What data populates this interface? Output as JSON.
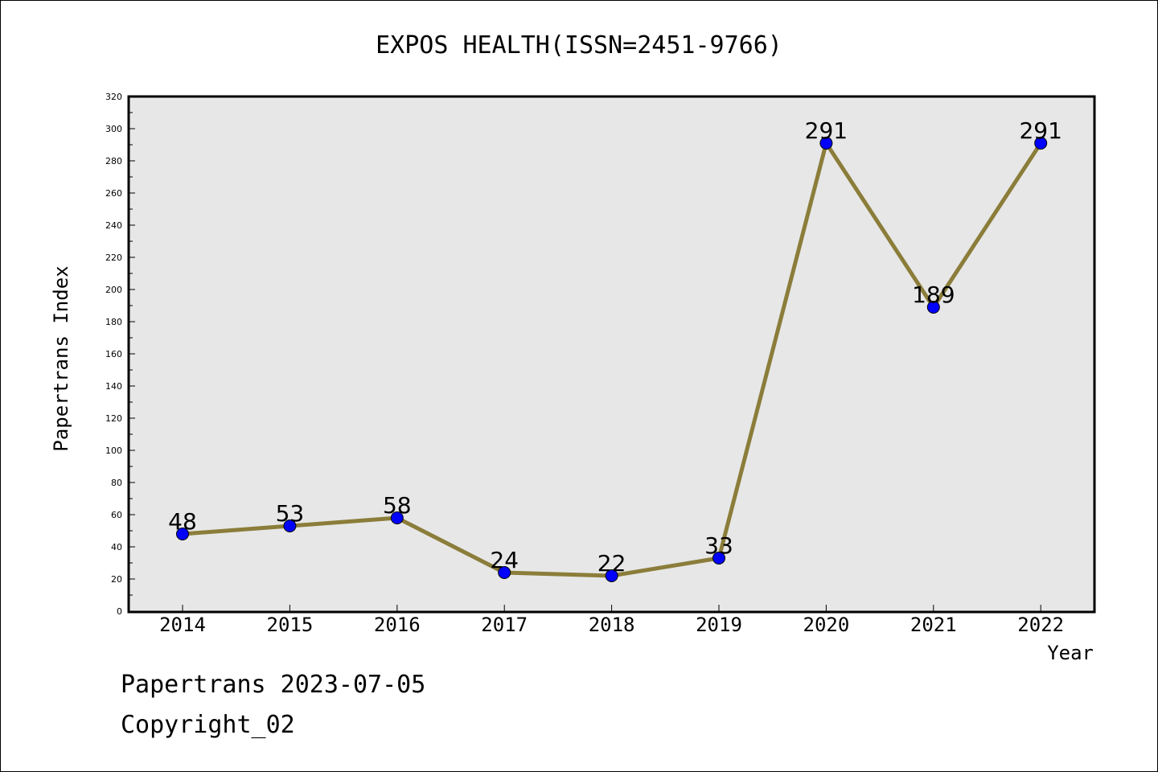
{
  "chart_data": {
    "type": "line",
    "title": "EXPOS HEALTH(ISSN=2451-9766)",
    "xlabel": "Year",
    "ylabel": "Papertrans Index",
    "categories": [
      "2014",
      "2015",
      "2016",
      "2017",
      "2018",
      "2019",
      "2020",
      "2021",
      "2022"
    ],
    "series": [
      {
        "values": [
          48,
          53,
          58,
          24,
          22,
          33,
          291,
          189,
          291
        ]
      }
    ],
    "data_labels": [
      "48",
      "53",
      "58",
      "24",
      "22",
      "33",
      "291",
      "189",
      "291"
    ],
    "ylim": [
      0,
      320
    ],
    "yticks": [
      0,
      20,
      40,
      60,
      80,
      100,
      120,
      140,
      160,
      180,
      200,
      220,
      240,
      260,
      280,
      300,
      320
    ],
    "grid": false,
    "legend": "none",
    "colors": {
      "line": "#8B7D3A",
      "marker": "#0000FF",
      "plot_background": "#E7E7E7"
    }
  },
  "footer": {
    "date_text": "Papertrans 2023-07-05",
    "copyright_text": "Copyright_02"
  }
}
